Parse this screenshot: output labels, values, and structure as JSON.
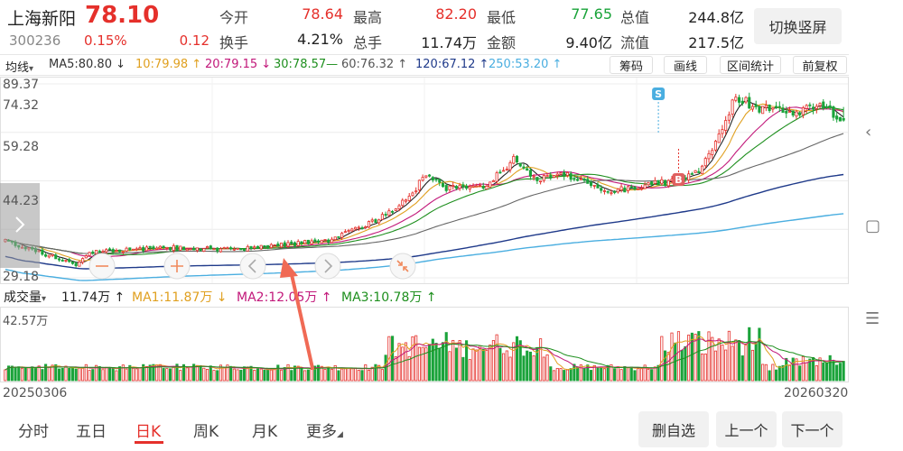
{
  "stock": {
    "name": "上海新阳",
    "price": "78.10",
    "code": "300236",
    "change_pct": "0.15%",
    "change": "0.12"
  },
  "metrics": [
    {
      "label": "今开",
      "value": "78.64",
      "color": "red"
    },
    {
      "label": "最高",
      "value": "82.20",
      "color": "red"
    },
    {
      "label": "最低",
      "value": "77.65",
      "color": "grn"
    },
    {
      "label": "总值",
      "value": "244.8亿",
      "color": "dk"
    },
    {
      "label": "换手",
      "value": "4.21%",
      "color": "dk"
    },
    {
      "label": "总手",
      "value": "11.74万",
      "color": "dk"
    },
    {
      "label": "金额",
      "value": "9.40亿",
      "color": "dk"
    },
    {
      "label": "流值",
      "value": "217.5亿",
      "color": "dk"
    }
  ],
  "switch_label": "切换竖屏",
  "ma_bar": {
    "type_label": "均线",
    "dropdown_arrow": "▾",
    "items": [
      {
        "text": "MA5:80.80 ↓",
        "color": "#333333"
      },
      {
        "text": "10:79.98 ↑",
        "color": "#e0a020"
      },
      {
        "text": "20:79.15 ↓",
        "color": "#c2187a"
      },
      {
        "text": "30:78.57—",
        "color": "#1e8f1e"
      },
      {
        "text": "60:76.32 ↑",
        "color": "#555555"
      },
      {
        "text": "120:67.12 ↑",
        "color": "#1f3a8a"
      },
      {
        "text": "250:53.20 ↑",
        "color": "#4aaee0"
      }
    ],
    "tools": [
      "筹码",
      "画线",
      "区间统计",
      "前复权"
    ]
  },
  "price_axis": [
    "89.37",
    "74.32",
    "59.28",
    "44.23",
    "29.18"
  ],
  "markers": {
    "s": "S",
    "b": "B"
  },
  "volume_bar": {
    "type_label": "成交量",
    "dropdown_arrow": "▾",
    "current": "11.74万 ↑",
    "items": [
      {
        "text": "MA1:11.87万 ↓",
        "color": "#e0a020"
      },
      {
        "text": "MA2:12.05万 ↑",
        "color": "#c2187a"
      },
      {
        "text": "MA3:10.78万 ↑",
        "color": "#1e8f1e"
      }
    ],
    "max_label": "42.57万"
  },
  "dates": {
    "start": "20250306",
    "end": "20260320"
  },
  "period_tabs": [
    {
      "label": "分时",
      "active": false
    },
    {
      "label": "五日",
      "active": false
    },
    {
      "label": "日K",
      "active": true
    },
    {
      "label": "周K",
      "active": false
    },
    {
      "label": "月K",
      "active": false
    },
    {
      "label": "更多",
      "active": false
    }
  ],
  "more_arrow": "◢",
  "buttons": {
    "delete": "删自选",
    "prev": "上一个",
    "next": "下一个"
  },
  "colors": {
    "up": "#e5302b",
    "down": "#1aa33a",
    "accent": "#f08a5d"
  },
  "icons": [
    "chevron-right-icon",
    "minus-icon",
    "plus-icon",
    "chevron-left-icon",
    "chevron-right-icon",
    "collapse-icon",
    "back-icon",
    "square-icon",
    "menu-icon"
  ],
  "chart_data": {
    "type": "candlestick",
    "x_range": [
      "20250306",
      "20260320"
    ],
    "ylim": [
      29.18,
      89.37
    ],
    "approx_close_path": [
      {
        "date": "20250306",
        "close": 40.5
      },
      {
        "date": "20250407",
        "close": 33.5
      },
      {
        "date": "20250415",
        "close": 37.5
      },
      {
        "date": "20250520",
        "close": 38.5
      },
      {
        "date": "20250620",
        "close": 38.0
      },
      {
        "date": "20250710",
        "close": 39.5
      },
      {
        "date": "20250801",
        "close": 41.0
      },
      {
        "date": "20250820",
        "close": 47.0
      },
      {
        "date": "20250905",
        "close": 54.0
      },
      {
        "date": "20250912",
        "close": 62.0
      },
      {
        "date": "20250920",
        "close": 57.0
      },
      {
        "date": "20251010",
        "close": 58.0
      },
      {
        "date": "20251022",
        "close": 66.0
      },
      {
        "date": "20251101",
        "close": 60.0
      },
      {
        "date": "20251115",
        "close": 61.0
      },
      {
        "date": "20251201",
        "close": 56.0
      },
      {
        "date": "20251215",
        "close": 57.0
      },
      {
        "date": "20260105",
        "close": 60.0
      },
      {
        "date": "20260115",
        "close": 63.0
      },
      {
        "date": "20260130",
        "close": 85.0
      },
      {
        "date": "20260210",
        "close": 82.0
      },
      {
        "date": "20260225",
        "close": 80.0
      },
      {
        "date": "20260310",
        "close": 83.0
      },
      {
        "date": "20260320",
        "close": 78.1
      }
    ],
    "ma_last": {
      "MA5": 80.8,
      "MA10": 79.98,
      "MA20": 79.15,
      "MA30": 78.57,
      "MA60": 76.32,
      "MA120": 67.12,
      "MA250": 53.2
    },
    "volume_ylim": [
      0,
      42.57
    ],
    "volume_unit": "万"
  }
}
